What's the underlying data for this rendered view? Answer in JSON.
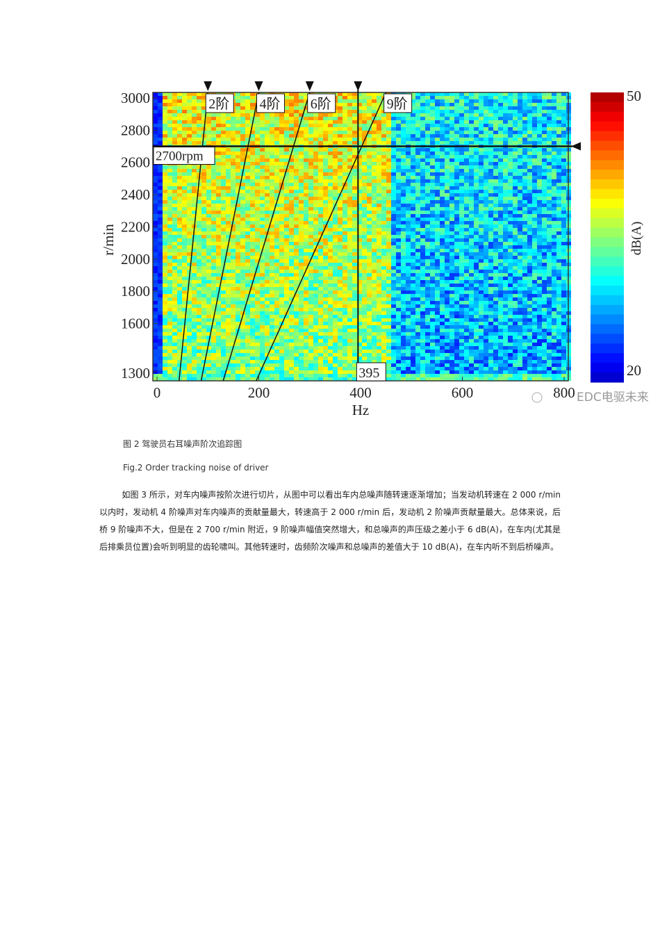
{
  "figure": {
    "xlabel": "Hz",
    "ylabel": "r/min",
    "colorbar_label": "dB(A)",
    "xlim": [
      0,
      800
    ],
    "xticks": [
      0,
      200,
      400,
      600,
      800
    ],
    "ylim": [
      1300,
      3000
    ],
    "yticks": [
      1300,
      1600,
      1800,
      2000,
      2200,
      2400,
      2600,
      2800,
      3000
    ],
    "clim": [
      20,
      50
    ],
    "cticks": [
      20,
      50
    ],
    "orders": [
      {
        "label": "2阶",
        "order": 2
      },
      {
        "label": "4阶",
        "order": 4
      },
      {
        "label": "6阶",
        "order": 6
      },
      {
        "label": "9阶",
        "order": 9
      }
    ],
    "rpm_line": {
      "value": 2700,
      "label": "2700rpm"
    },
    "freq_line": {
      "value": 395,
      "label": "395"
    },
    "watermark": "EDC电驱未来"
  },
  "caption_cn": "图 2 驾驶员右耳噪声阶次追踪图",
  "caption_en": "Fig.2 Order tracking noise of driver",
  "paragraph": "如图 3 所示，对车内噪声按阶次进行切片，从图中可以看出车内总噪声随转速逐渐增加；当发动机转速在 2 000 r/min 以内时，发动机 4 阶噪声对车内噪声的贡献量最大，转速高于 2 000 r/min 后，发动机 2 阶噪声贡献量最大。总体来说，后桥 9 阶噪声不大，但是在 2 700 r/min 附近，9 阶噪声幅值突然增大，和总噪声的声压级之差小于 6 dB(A)，在车内(尤其是后排乘员位置)会听到明显的齿轮啸叫。其他转速时，齿频阶次噪声和总噪声的差值大于 10 dB(A)，在车内听不到后桥噪声。"
}
